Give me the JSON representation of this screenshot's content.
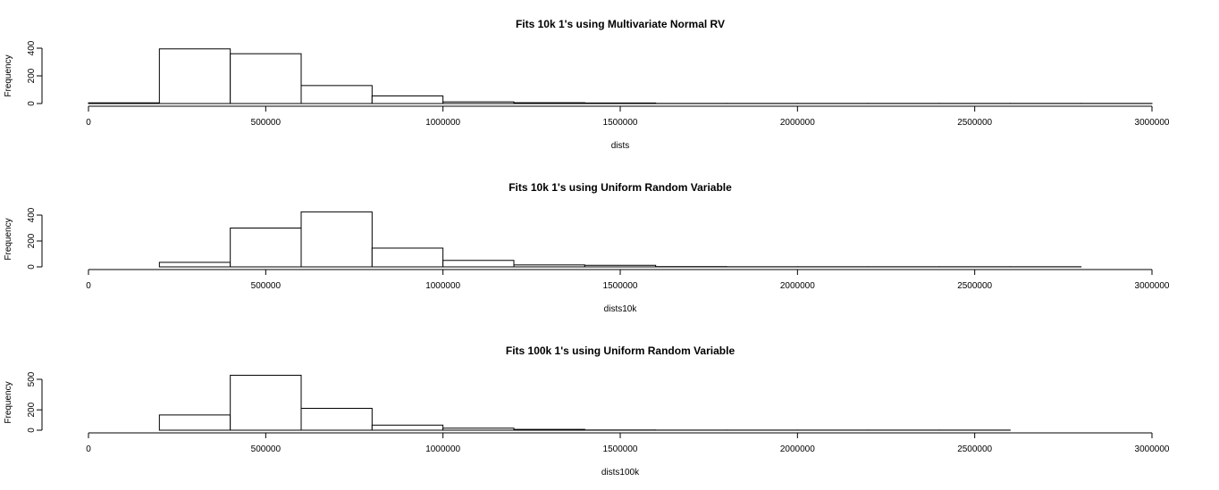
{
  "chart_data": [
    {
      "type": "bar",
      "title": "Fits 10k 1's using Multivariate Normal RV",
      "xlabel": "dists",
      "ylabel": "Frequency",
      "xlim": [
        0,
        3000000
      ],
      "ylim": [
        0,
        400
      ],
      "xticks": [
        0,
        500000,
        1000000,
        1500000,
        2000000,
        2500000,
        3000000
      ],
      "yticks": [
        0,
        200,
        400
      ],
      "bins": [
        [
          0,
          200000
        ],
        [
          200000,
          400000
        ],
        [
          400000,
          600000
        ],
        [
          600000,
          800000
        ],
        [
          800000,
          1000000
        ],
        [
          1000000,
          1200000
        ],
        [
          1200000,
          1400000
        ],
        [
          1400000,
          1600000
        ],
        [
          1600000,
          1800000
        ],
        [
          1800000,
          2000000
        ],
        [
          2000000,
          2200000
        ],
        [
          2200000,
          2400000
        ],
        [
          2400000,
          2600000
        ],
        [
          2600000,
          2800000
        ],
        [
          2800000,
          3000000
        ]
      ],
      "values": [
        5,
        395,
        360,
        130,
        55,
        12,
        6,
        4,
        1,
        1,
        1,
        1,
        1,
        1,
        1
      ]
    },
    {
      "type": "bar",
      "title": "Fits 10k 1's using Uniform Random Variable",
      "xlabel": "dists10k",
      "ylabel": "Frequency",
      "xlim": [
        0,
        3000000
      ],
      "ylim": [
        0,
        400
      ],
      "xticks": [
        0,
        500000,
        1000000,
        1500000,
        2000000,
        2500000,
        3000000
      ],
      "yticks": [
        0,
        200,
        400
      ],
      "bins": [
        [
          200000,
          400000
        ],
        [
          400000,
          600000
        ],
        [
          600000,
          800000
        ],
        [
          800000,
          1000000
        ],
        [
          1000000,
          1200000
        ],
        [
          1200000,
          1400000
        ],
        [
          1400000,
          1600000
        ],
        [
          1600000,
          1800000
        ],
        [
          1800000,
          2000000
        ],
        [
          2000000,
          2200000
        ],
        [
          2200000,
          2400000
        ],
        [
          2400000,
          2600000
        ],
        [
          2600000,
          2800000
        ]
      ],
      "values": [
        35,
        300,
        425,
        145,
        50,
        15,
        12,
        2,
        1,
        1,
        1,
        1,
        1
      ]
    },
    {
      "type": "bar",
      "title": "Fits 100k 1's using Uniform Random Variable",
      "xlabel": "dists100k",
      "ylabel": "Frequency",
      "xlim": [
        0,
        3000000
      ],
      "ylim": [
        0,
        500
      ],
      "xticks": [
        0,
        500000,
        1000000,
        1500000,
        2000000,
        2500000,
        3000000
      ],
      "yticks": [
        0,
        200,
        500
      ],
      "bins": [
        [
          200000,
          400000
        ],
        [
          400000,
          600000
        ],
        [
          600000,
          800000
        ],
        [
          800000,
          1000000
        ],
        [
          1000000,
          1200000
        ],
        [
          1200000,
          1400000
        ],
        [
          1400000,
          1600000
        ],
        [
          1600000,
          1800000
        ],
        [
          1800000,
          2000000
        ],
        [
          2000000,
          2200000
        ],
        [
          2200000,
          2400000
        ],
        [
          2400000,
          2600000
        ]
      ],
      "values": [
        150,
        540,
        215,
        50,
        20,
        8,
        2,
        1,
        1,
        1,
        1,
        1
      ]
    }
  ]
}
